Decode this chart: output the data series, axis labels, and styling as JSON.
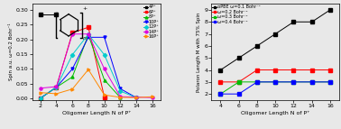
{
  "left_plot": {
    "xlabel": "Oligomer Length N of P⁺",
    "ylabel": "Spin a.u. ω=0.2 Bohr⁻¹",
    "xlim": [
      1,
      17
    ],
    "ylim": [
      -0.005,
      0.32
    ],
    "xticks": [
      2,
      4,
      6,
      8,
      10,
      12,
      14,
      16
    ],
    "yticks": [
      0.0,
      0.05,
      0.1,
      0.15,
      0.2,
      0.25,
      0.3
    ],
    "series": [
      {
        "label": "4P⁺",
        "color": "#000000",
        "marker": "s",
        "x": [
          2,
          4
        ],
        "y": [
          0.284,
          0.284
        ]
      },
      {
        "label": "6P⁺",
        "color": "#ff0000",
        "marker": "s",
        "x": [
          2,
          4,
          6,
          8,
          10
        ],
        "y": [
          0.001,
          0.038,
          0.222,
          0.241,
          0.005
        ]
      },
      {
        "label": "8P⁺",
        "color": "#00bb00",
        "marker": "^",
        "x": [
          2,
          4,
          6,
          8,
          10,
          12
        ],
        "y": [
          0.001,
          0.038,
          0.073,
          0.215,
          0.063,
          0.003
        ]
      },
      {
        "label": "10P⁺",
        "color": "#0000ff",
        "marker": "v",
        "x": [
          2,
          4,
          6,
          8,
          10,
          12,
          14
        ],
        "y": [
          0.001,
          0.038,
          0.1,
          0.207,
          0.207,
          0.033,
          0.003
        ]
      },
      {
        "label": "12P⁺",
        "color": "#00cccc",
        "marker": "D",
        "x": [
          2,
          4,
          6,
          8,
          10,
          12,
          14
        ],
        "y": [
          0.001,
          0.038,
          0.148,
          0.217,
          0.148,
          0.025,
          0.003
        ]
      },
      {
        "label": "14P⁺",
        "color": "#dd00dd",
        "marker": "o",
        "x": [
          2,
          4,
          6,
          8,
          10,
          12,
          14,
          16
        ],
        "y": [
          0.035,
          0.04,
          0.218,
          0.218,
          0.1,
          0.006,
          0.005,
          0.003
        ]
      },
      {
        "label": "16P⁺",
        "color": "#ff8800",
        "marker": ">",
        "x": [
          2,
          4,
          6,
          8,
          10,
          12,
          14,
          16
        ],
        "y": [
          0.02,
          0.016,
          0.032,
          0.098,
          0.012,
          0.004,
          0.003,
          0.006
        ]
      }
    ]
  },
  "right_plot": {
    "xlabel": "Oligomer Length N of P⁺",
    "ylabel": "Polaron Length M with 75% Spin",
    "xlim": [
      3,
      17
    ],
    "ylim": [
      1.5,
      9.5
    ],
    "xticks": [
      4,
      6,
      8,
      10,
      12,
      14,
      16
    ],
    "yticks": [
      2,
      3,
      4,
      5,
      6,
      7,
      8,
      9
    ],
    "series": [
      {
        "label": "αPBE ω=0.1 Bohr⁻¹",
        "color": "#000000",
        "marker": "s",
        "x": [
          4,
          6,
          8,
          10,
          12,
          14,
          16
        ],
        "y": [
          4,
          5,
          6,
          7,
          8,
          8,
          9
        ]
      },
      {
        "label": "ω=0.2 Bohr⁻¹",
        "color": "#ff0000",
        "marker": "s",
        "x": [
          4,
          6,
          8,
          10,
          12,
          14,
          16
        ],
        "y": [
          3,
          3,
          4,
          4,
          4,
          4,
          4
        ]
      },
      {
        "label": "ω=0.3 Bohr⁻¹",
        "color": "#00bb00",
        "marker": "s",
        "x": [
          4,
          6,
          8,
          10,
          12,
          14,
          16
        ],
        "y": [
          2,
          3,
          3,
          3,
          3,
          3,
          3
        ]
      },
      {
        "label": "ω=0.4 Bohr⁻¹",
        "color": "#0000ff",
        "marker": "s",
        "x": [
          4,
          6,
          8,
          10,
          12,
          14,
          16
        ],
        "y": [
          2,
          2,
          3,
          3,
          3,
          3,
          3
        ]
      }
    ]
  },
  "bg_color": "#e8e8e8",
  "inset": {
    "x": [
      0.12,
      0.55
    ],
    "y": [
      0.6,
      0.97
    ]
  }
}
